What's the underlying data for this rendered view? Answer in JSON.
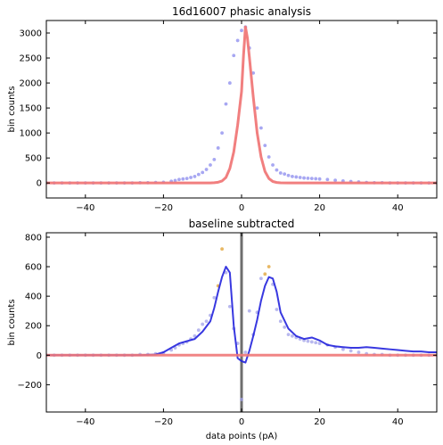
{
  "chart_data": [
    {
      "type": "scatter+line",
      "title": "16d16007 phasic analysis",
      "xlabel": "",
      "ylabel": "bin counts",
      "xlim": [
        -50,
        50
      ],
      "ylim": [
        -300,
        3250
      ],
      "xticks": [
        -40,
        -20,
        0,
        20,
        40
      ],
      "xtick_labels": [
        "−40",
        "−20",
        "0",
        "20",
        "40"
      ],
      "yticks": [
        0,
        500,
        1000,
        1500,
        2000,
        2500,
        3000
      ],
      "ytick_labels": [
        "0",
        "500",
        "1000",
        "1500",
        "2000",
        "2500",
        "3000"
      ],
      "grid": false,
      "colors": {
        "scatter": "#8a8aee",
        "fit": "#f07878"
      },
      "series": [
        {
          "kind": "scatter",
          "x": [
            -50,
            -48,
            -46,
            -44,
            -42,
            -40,
            -38,
            -36,
            -34,
            -32,
            -30,
            -28,
            -26,
            -24,
            -22,
            -20,
            -18,
            -17,
            -16,
            -15,
            -14,
            -13,
            -12,
            -11,
            -10,
            -9,
            -8,
            -7,
            -6,
            -5,
            -4,
            -3,
            -2,
            -1,
            0,
            1,
            2,
            3,
            4,
            5,
            6,
            7,
            8,
            9,
            10,
            11,
            12,
            13,
            14,
            15,
            16,
            17,
            18,
            19,
            20,
            22,
            24,
            26,
            28,
            30,
            32,
            34,
            36,
            38,
            40,
            42,
            44,
            46,
            48,
            50
          ],
          "y": [
            0,
            0,
            0,
            0,
            0,
            0,
            0,
            0,
            0,
            0,
            0,
            0,
            5,
            5,
            10,
            15,
            35,
            50,
            70,
            80,
            90,
            110,
            130,
            170,
            210,
            270,
            360,
            470,
            700,
            1000,
            1580,
            2000,
            2550,
            2850,
            3050,
            3120,
            2700,
            2200,
            1500,
            1100,
            750,
            520,
            360,
            260,
            200,
            180,
            150,
            130,
            120,
            110,
            100,
            95,
            90,
            85,
            80,
            70,
            55,
            40,
            30,
            20,
            10,
            5,
            5,
            0,
            0,
            0,
            0,
            0,
            0,
            0
          ]
        },
        {
          "kind": "line",
          "x": [
            -50,
            -20,
            -10,
            -8,
            -7,
            -6,
            -5,
            -4,
            -3,
            -2,
            -1,
            0,
            0.5,
            1,
            1.5,
            2,
            3,
            4,
            5,
            6,
            7,
            8,
            9,
            10,
            12,
            20,
            50
          ],
          "y": [
            0,
            0,
            0,
            2,
            5,
            15,
            40,
            110,
            290,
            620,
            1160,
            1830,
            2550,
            3120,
            2900,
            2520,
            1720,
            1000,
            520,
            230,
            90,
            30,
            10,
            3,
            0,
            0,
            0
          ]
        }
      ]
    },
    {
      "type": "scatter+line",
      "title": "baseline subtracted",
      "xlabel": "data points (pA)",
      "ylabel": "bin counts",
      "xlim": [
        -50,
        50
      ],
      "ylim": [
        -385,
        830
      ],
      "xticks": [
        -40,
        -20,
        0,
        20,
        40
      ],
      "xtick_labels": [
        "−40",
        "−20",
        "0",
        "20",
        "40"
      ],
      "yticks": [
        -200,
        0,
        200,
        400,
        600,
        800
      ],
      "ytick_labels": [
        "−200",
        "0",
        "200",
        "400",
        "600",
        "800"
      ],
      "grid": false,
      "vline_x": 0,
      "colors": {
        "scatter": "#a0a0e8",
        "smoothed": "#2222dd",
        "zero": "#f07878",
        "vline": "#555555",
        "highlight": "#e0a030"
      },
      "series": [
        {
          "kind": "scatter",
          "x": [
            -50,
            -48,
            -46,
            -44,
            -42,
            -40,
            -38,
            -36,
            -34,
            -32,
            -30,
            -28,
            -26,
            -24,
            -22,
            -20,
            -18,
            -17,
            -16,
            -15,
            -14,
            -13,
            -12,
            -11,
            -10,
            -9,
            -8,
            -7,
            -6,
            -5,
            -4,
            -3,
            -2,
            -1,
            0,
            1,
            2,
            3,
            4,
            5,
            6,
            7,
            8,
            9,
            10,
            11,
            12,
            13,
            14,
            15,
            16,
            17,
            18,
            19,
            20,
            22,
            24,
            26,
            28,
            30,
            32,
            34,
            36,
            38,
            40,
            42,
            44,
            46,
            48,
            50
          ],
          "y": [
            0,
            0,
            0,
            0,
            0,
            0,
            0,
            0,
            0,
            0,
            0,
            0,
            5,
            5,
            10,
            15,
            35,
            50,
            70,
            80,
            90,
            110,
            130,
            170,
            210,
            230,
            270,
            390,
            470,
            720,
            560,
            330,
            180,
            80,
            -300,
            20,
            300,
            140,
            290,
            520,
            550,
            600,
            480,
            310,
            230,
            190,
            140,
            130,
            120,
            110,
            100,
            95,
            90,
            85,
            80,
            70,
            55,
            40,
            30,
            20,
            10,
            5,
            5,
            0,
            0,
            0,
            0,
            0,
            0,
            0
          ]
        },
        {
          "kind": "line",
          "x": [
            -50,
            -26,
            -22,
            -20,
            -18,
            -16,
            -14,
            -12,
            -10,
            -8,
            -7,
            -6,
            -5,
            -4,
            -3,
            -2,
            -1,
            0,
            1,
            2,
            3,
            4,
            5,
            6,
            7,
            8,
            9,
            10,
            12,
            14,
            16,
            18,
            20,
            22,
            24,
            26,
            28,
            30,
            32,
            34,
            36,
            38,
            40,
            42,
            44,
            46,
            48,
            50
          ],
          "y": [
            0,
            0,
            5,
            20,
            50,
            80,
            95,
            110,
            160,
            230,
            320,
            430,
            530,
            600,
            560,
            200,
            -20,
            -40,
            -50,
            30,
            130,
            240,
            370,
            470,
            530,
            520,
            430,
            290,
            180,
            130,
            110,
            120,
            100,
            70,
            60,
            55,
            50,
            50,
            55,
            50,
            45,
            40,
            35,
            30,
            25,
            25,
            20,
            20
          ]
        },
        {
          "kind": "line",
          "name": "zero",
          "x": [
            -50,
            50
          ],
          "y": [
            0,
            0
          ]
        }
      ]
    }
  ]
}
